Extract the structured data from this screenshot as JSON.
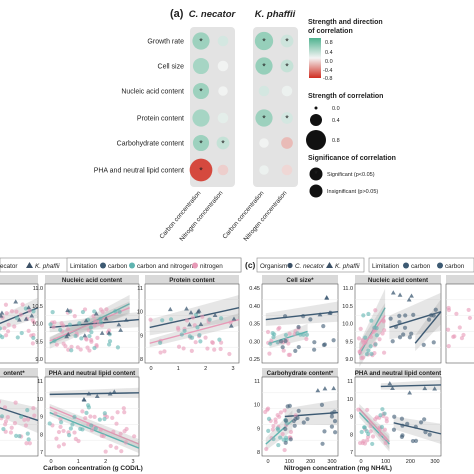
{
  "panel_a": {
    "label": "(a)",
    "organisms": [
      "C. necator",
      "K. phaffii"
    ],
    "rows": [
      "Growth rate",
      "Cell size",
      "Nucleic acid content",
      "Protein content",
      "Carbohydrate content",
      "PHA and neutral lipid content"
    ],
    "columns": [
      "Carbon concentration",
      "Nitrogen concentration"
    ],
    "cells": [
      [
        [
          0.55,
          0.6,
          true
        ],
        [
          0.2,
          0.3,
          false
        ],
        [
          0.6,
          0.65,
          true
        ],
        [
          0.25,
          0.4,
          true
        ]
      ],
      [
        [
          0.5,
          0.55,
          false
        ],
        [
          0.02,
          0.3,
          false
        ],
        [
          0.6,
          0.6,
          true
        ],
        [
          0.3,
          0.4,
          true
        ]
      ],
      [
        [
          0.55,
          0.55,
          true
        ],
        [
          0.02,
          0.25,
          false
        ],
        [
          0.2,
          0.3,
          false
        ],
        [
          0.05,
          0.3,
          false
        ]
      ],
      [
        [
          0.5,
          0.6,
          false
        ],
        [
          0.1,
          0.3,
          false
        ],
        [
          0.55,
          0.6,
          true
        ],
        [
          0.2,
          0.35,
          true
        ]
      ],
      [
        [
          0.55,
          0.55,
          true
        ],
        [
          0.3,
          0.4,
          true
        ],
        [
          0.02,
          0.25,
          false
        ],
        [
          -0.3,
          0.35,
          false
        ]
      ],
      [
        [
          -0.9,
          0.85,
          true
        ],
        [
          -0.2,
          0.3,
          false
        ],
        [
          0.05,
          0.25,
          false
        ],
        [
          -0.15,
          0.3,
          false
        ]
      ]
    ]
  },
  "legend_a": {
    "direction_title_1": "Strength and direction",
    "direction_title_2": "of correlation",
    "direction_ticks": [
      "0.8",
      "0.4",
      "0.0",
      "-0.4",
      "-0.8"
    ],
    "strength_title": "Strength of correlation",
    "strength_ticks": [
      "0.0",
      "0.4",
      "0.8"
    ],
    "signif_title": "Significance of correlation",
    "signif_items": [
      "Significant (p<0.05)",
      "Insignificant (p>0.05)"
    ]
  },
  "panel_b": {
    "legend_organism_text": "ecator",
    "legend_organism_2": "K. phaffii",
    "limitation_label": "Limitation",
    "limitation_items": [
      "carbon",
      "carbon and nitrogen",
      "nitrogen"
    ],
    "top_titles": [
      "",
      "Nucleic acid content",
      "Protein content"
    ],
    "bottom_titles": [
      "ontent*",
      "PHA and neutral lipid content"
    ],
    "xlabel": "Carbon concentration (g COD/L)",
    "top_mid_yticks": [
      "11.0",
      "10.5",
      "10.0",
      "9.5",
      "9.0"
    ],
    "top_right_yticks": [
      "11",
      "10",
      "9",
      "8"
    ],
    "bottom_mid_yticks": [
      "11",
      "10",
      "9",
      "8",
      "7"
    ],
    "top_right_xticks": [
      "0",
      "1",
      "2",
      "3"
    ],
    "bottom_mid_xticks": [
      "0",
      "1",
      "2",
      "3"
    ]
  },
  "panel_c": {
    "label": "(c)",
    "organism_label": "Organism",
    "organism_1": "C. necator",
    "organism_2": "K. phaffii",
    "limitation_label": "Limitation",
    "limitation_items": [
      "carbon",
      "carbon"
    ],
    "top_titles": [
      "Cell size*",
      "Nucleic acid content"
    ],
    "bottom_titles": [
      "Carbohydrate content*",
      "PHA and neutral lipid content"
    ],
    "xlabel": "Nitrogen concentration (mg NH4/L)",
    "top_left_yticks": [
      "0.45",
      "0.40",
      "0.35",
      "0.30",
      "0.25"
    ],
    "top_mid_yticks": [
      "11.0",
      "10.5",
      "10.0",
      "9.5",
      "9.0"
    ],
    "bottom_left_yticks": [
      "11",
      "10",
      "9",
      "8"
    ],
    "bottom_mid_yticks": [
      "11",
      "10",
      "9",
      "8",
      "7"
    ],
    "bottom_left_xticks": [
      "0",
      "100",
      "200",
      "300"
    ],
    "bottom_mid_xticks": [
      "0",
      "100",
      "200",
      "300"
    ]
  },
  "colors": {
    "carbon": "#3d5a73",
    "carbon_and_nitrogen": "#5fb4b0",
    "nitrogen": "#e79ab7",
    "positive": "#6cc1a3",
    "negative": "#d33a2c"
  }
}
